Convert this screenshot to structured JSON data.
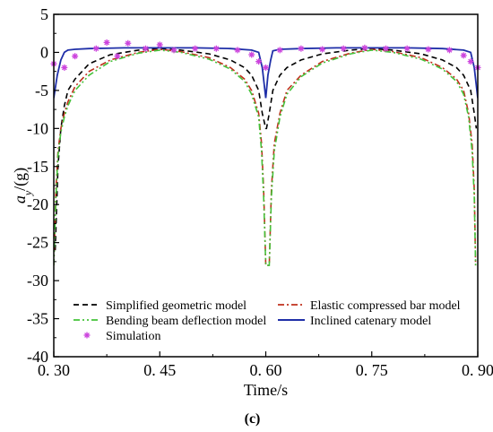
{
  "chart_data": {
    "type": "line",
    "title": "",
    "xlabel": "Time/s",
    "ylabel_main": "a",
    "ylabel_sub": "y",
    "ylabel_unit": "/(g)",
    "caption": "(c)",
    "xlim": [
      0.3,
      0.9
    ],
    "ylim": [
      -40,
      5
    ],
    "xticks": [
      0.3,
      0.45,
      0.6,
      0.75,
      0.9
    ],
    "xtick_labels": [
      "0. 30",
      "0. 45",
      "0. 60",
      "0. 75",
      "0. 90"
    ],
    "yticks": [
      5,
      0,
      -5,
      -10,
      -15,
      -20,
      -25,
      -30,
      -35,
      -40
    ],
    "ytick_labels": [
      "5",
      "0",
      "-5",
      "-10",
      "-15",
      "-20",
      "-25",
      "-30",
      "-35",
      "-40"
    ],
    "grid": false,
    "legend_placement": "bottom",
    "series": [
      {
        "name": "Simplified geometric model",
        "color": "#000000",
        "style": "dash",
        "x": [
          0.302,
          0.306,
          0.31,
          0.315,
          0.32,
          0.33,
          0.35,
          0.38,
          0.42,
          0.45,
          0.48,
          0.52,
          0.55,
          0.57,
          0.58,
          0.59,
          0.595,
          0.6,
          0.601,
          0.605,
          0.61,
          0.62,
          0.63,
          0.65,
          0.68,
          0.72,
          0.75,
          0.78,
          0.82,
          0.85,
          0.87,
          0.88,
          0.89,
          0.895,
          0.898
        ],
        "y": [
          -26,
          -15,
          -10,
          -7,
          -5,
          -3.5,
          -1.5,
          -0.3,
          0.3,
          0.5,
          0.3,
          -0.2,
          -1,
          -2,
          -3,
          -5,
          -8,
          -10,
          -10,
          -8,
          -5,
          -3,
          -2,
          -1,
          -0.2,
          0.3,
          0.5,
          0.3,
          -0.2,
          -1,
          -2,
          -3,
          -5,
          -8,
          -10
        ]
      },
      {
        "name": "Elastic compressed bar model",
        "color": "#c0301c",
        "style": "dashdot",
        "x": [
          0.3,
          0.303,
          0.306,
          0.31,
          0.315,
          0.32,
          0.33,
          0.35,
          0.38,
          0.42,
          0.45,
          0.48,
          0.52,
          0.55,
          0.57,
          0.58,
          0.59,
          0.594,
          0.597,
          0.6,
          0.605,
          0.608,
          0.612,
          0.62,
          0.63,
          0.65,
          0.68,
          0.72,
          0.75,
          0.78,
          0.82,
          0.85,
          0.87,
          0.88,
          0.887,
          0.892,
          0.895,
          0.897
        ],
        "y": [
          -28,
          -18,
          -13,
          -10,
          -8,
          -6.5,
          -4.5,
          -2.5,
          -1,
          0,
          0.4,
          0.1,
          -0.7,
          -2,
          -3.5,
          -5,
          -8,
          -12,
          -18,
          -28,
          -28,
          -18,
          -12,
          -8,
          -5,
          -3,
          -1.2,
          -0.1,
          0.4,
          0.1,
          -0.7,
          -2,
          -3.5,
          -5,
          -8,
          -12,
          -18,
          -28
        ]
      },
      {
        "name": "Bending beam deflection model",
        "color": "#44c23a",
        "style": "dashdotdot",
        "x": [
          0.3,
          0.303,
          0.306,
          0.31,
          0.315,
          0.32,
          0.33,
          0.35,
          0.38,
          0.42,
          0.45,
          0.48,
          0.52,
          0.55,
          0.57,
          0.58,
          0.59,
          0.594,
          0.597,
          0.6,
          0.605,
          0.608,
          0.612,
          0.62,
          0.63,
          0.65,
          0.68,
          0.72,
          0.75,
          0.78,
          0.82,
          0.85,
          0.87,
          0.88,
          0.887,
          0.892,
          0.895,
          0.897
        ],
        "y": [
          -28,
          -19,
          -13.5,
          -10.5,
          -8.5,
          -7,
          -5,
          -3,
          -1.2,
          -0.1,
          0.3,
          0,
          -0.9,
          -2.2,
          -3.8,
          -5.5,
          -8.5,
          -13,
          -19,
          -28,
          -28,
          -19,
          -13,
          -8.5,
          -5.5,
          -3.2,
          -1.4,
          -0.2,
          0.3,
          0,
          -0.9,
          -2.2,
          -3.8,
          -5.5,
          -8.5,
          -13,
          -19,
          -28
        ]
      },
      {
        "name": "Inclined catenary model",
        "color": "#1f2fa8",
        "style": "solid",
        "x": [
          0.3,
          0.305,
          0.31,
          0.315,
          0.32,
          0.33,
          0.35,
          0.4,
          0.45,
          0.5,
          0.55,
          0.58,
          0.59,
          0.595,
          0.6,
          0.603,
          0.607,
          0.61,
          0.62,
          0.65,
          0.7,
          0.75,
          0.8,
          0.85,
          0.88,
          0.89,
          0.895,
          0.9
        ],
        "y": [
          -6,
          -3,
          -1,
          0,
          0.3,
          0.4,
          0.5,
          0.6,
          0.6,
          0.6,
          0.5,
          0.3,
          0,
          -2,
          -6,
          -3,
          -1,
          0.2,
          0.4,
          0.5,
          0.6,
          0.6,
          0.6,
          0.5,
          0.3,
          0,
          -2,
          -6
        ]
      }
    ],
    "simulation": {
      "name": "Simulation",
      "color": "#cc44dd",
      "x": [
        0.3,
        0.315,
        0.33,
        0.36,
        0.375,
        0.39,
        0.405,
        0.43,
        0.45,
        0.47,
        0.5,
        0.53,
        0.56,
        0.58,
        0.59,
        0.6,
        0.62,
        0.65,
        0.68,
        0.71,
        0.74,
        0.77,
        0.8,
        0.83,
        0.86,
        0.88,
        0.89,
        0.9
      ],
      "y": [
        -1.5,
        -2,
        -0.5,
        0.5,
        1.3,
        -0.5,
        1.2,
        0.5,
        1,
        0.3,
        0.5,
        0.5,
        0.3,
        -0.3,
        -1.2,
        -2,
        0.3,
        0.5,
        0.4,
        0.5,
        0.6,
        0.5,
        0.5,
        0.4,
        0.3,
        -0.4,
        -1.2,
        -2
      ]
    }
  }
}
